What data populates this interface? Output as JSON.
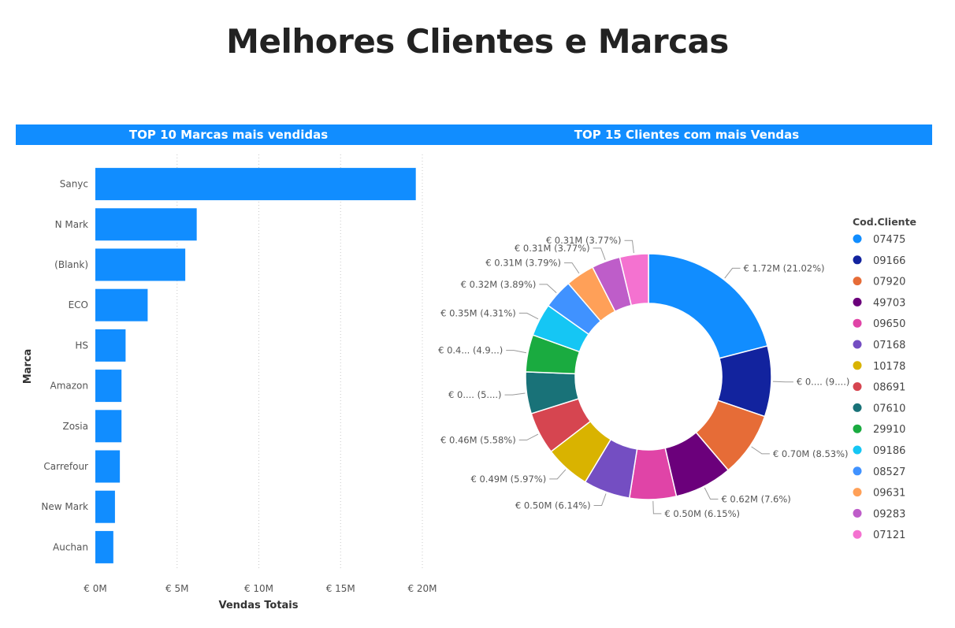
{
  "title": "Melhores Clientes e Marcas",
  "chart_data": [
    {
      "type": "bar",
      "orientation": "horizontal",
      "title": "TOP 10 Marcas mais vendidas",
      "xlabel": "Vendas Totais",
      "ylabel": "Marca",
      "categories": [
        "Sanyc",
        "N Mark",
        "(Blank)",
        "ECO",
        "HS",
        "Amazon",
        "Zosia",
        "Carrefour",
        "New Mark",
        "Auchan"
      ],
      "values": [
        19.6,
        6.2,
        5.5,
        3.2,
        1.85,
        1.6,
        1.6,
        1.5,
        1.2,
        1.1
      ],
      "xlim": [
        0,
        20
      ],
      "xticks": [
        0,
        5,
        10,
        15,
        20
      ],
      "xtick_labels": [
        "€ 0M",
        "€ 5M",
        "€ 10M",
        "€ 15M",
        "€ 20M"
      ],
      "grid": true,
      "color": "#118dff"
    },
    {
      "type": "pie",
      "style": "donut",
      "title": "TOP 15 Clientes com mais Vendas",
      "legend_title": "Cod.Cliente",
      "legend_position": "right",
      "slices": [
        {
          "name": "07475",
          "value": 1.72,
          "percent": 21.02,
          "color": "#118dff",
          "label": "€ 1.72M (21.02%)"
        },
        {
          "name": "09166",
          "value": 0.76,
          "percent": 9.3,
          "color": "#12239e",
          "label": "€ 0.... (9....)"
        },
        {
          "name": "07920",
          "value": 0.7,
          "percent": 8.53,
          "color": "#e66c37",
          "label": "€ 0.70M (8.53%)"
        },
        {
          "name": "49703",
          "value": 0.62,
          "percent": 7.6,
          "color": "#6b007b",
          "label": "€ 0.62M (7.6%)"
        },
        {
          "name": "09650",
          "value": 0.5,
          "percent": 6.15,
          "color": "#e044a7",
          "label": "€ 0.50M (6.15%)"
        },
        {
          "name": "07168",
          "value": 0.5,
          "percent": 6.14,
          "color": "#744ec2",
          "label": "€ 0.50M (6.14%)"
        },
        {
          "name": "10178",
          "value": 0.49,
          "percent": 5.97,
          "color": "#d9b300",
          "label": "€ 0.49M (5.97%)"
        },
        {
          "name": "08691",
          "value": 0.46,
          "percent": 5.58,
          "color": "#d64550",
          "label": "€ 0.46M (5.58%)"
        },
        {
          "name": "07610",
          "value": 0.45,
          "percent": 5.5,
          "color": "#197278",
          "label": "€ 0.... (5....)"
        },
        {
          "name": "29910",
          "value": 0.4,
          "percent": 4.9,
          "color": "#1aab40",
          "label": "€ 0.4... (4.9...)"
        },
        {
          "name": "09186",
          "value": 0.35,
          "percent": 4.31,
          "color": "#15c6f4",
          "label": "€ 0.35M (4.31%)"
        },
        {
          "name": "08527",
          "value": 0.32,
          "percent": 3.89,
          "color": "#4092ff",
          "label": "€ 0.32M (3.89%)"
        },
        {
          "name": "09631",
          "value": 0.31,
          "percent": 3.79,
          "color": "#ffa058",
          "label": "€ 0.31M (3.79%)"
        },
        {
          "name": "09283",
          "value": 0.31,
          "percent": 3.77,
          "color": "#be5dc9",
          "label": "€ 0.31M (3.77%)"
        },
        {
          "name": "07121",
          "value": 0.31,
          "percent": 3.77,
          "color": "#f472d0",
          "label": "€ 0.31M (3.77%)"
        }
      ]
    }
  ]
}
